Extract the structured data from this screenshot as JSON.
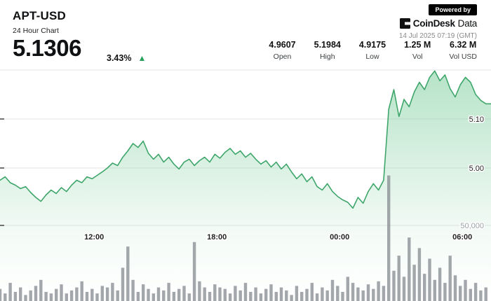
{
  "header": {
    "symbol": "APT-USD",
    "subtitle": "24 Hour Chart",
    "price": "5.1306",
    "change_pct": "3.43%",
    "change_direction": "up",
    "up_arrow": "▲"
  },
  "stats": [
    {
      "value": "4.9607",
      "label": "Open"
    },
    {
      "value": "5.1984",
      "label": "High"
    },
    {
      "value": "4.9175",
      "label": "Low"
    },
    {
      "value": "1.25 M",
      "label": "Vol"
    },
    {
      "value": "6.32 M",
      "label": "Vol USD"
    }
  ],
  "branding": {
    "powered_by": "Powered by",
    "logo_bold": "CoinDesk",
    "logo_light": "Data",
    "timestamp": "14 Jul 2025 07:19 (GMT)"
  },
  "colors": {
    "line_green": "#3fa66b",
    "fill_green": "#6ec891",
    "arrow_green": "#2aa15a",
    "volume_gray": "#8c9196",
    "grid": "#e5e5e5",
    "axis_text": "#222222",
    "axis_muted": "#9aa0a6"
  },
  "chart_data": {
    "type": "area",
    "title": "APT-USD 24 Hour Chart",
    "interval_hours": 0.25,
    "price_ylim": [
      4.88,
      5.24
    ],
    "volume_ylim": [
      0,
      83000
    ],
    "x_ticks": [
      {
        "label": "12:00",
        "hour": 4.6
      },
      {
        "label": "18:00",
        "hour": 10.6
      },
      {
        "label": "00:00",
        "hour": 16.6
      },
      {
        "label": "06:00",
        "hour": 22.6
      }
    ],
    "price_gridlines": [
      {
        "label": "",
        "value": 5.2
      },
      {
        "label": "5.10",
        "value": 5.1
      },
      {
        "label": "5.00",
        "value": 5.0
      }
    ],
    "volume_gridline": {
      "label": "50,000",
      "value": 50000
    },
    "prices": [
      4.975,
      4.982,
      4.97,
      4.965,
      4.958,
      4.962,
      4.95,
      4.94,
      4.932,
      4.945,
      4.955,
      4.948,
      4.96,
      4.952,
      4.965,
      4.975,
      4.97,
      4.982,
      4.978,
      4.985,
      4.992,
      5.0,
      5.01,
      5.005,
      5.022,
      5.035,
      5.05,
      5.042,
      5.055,
      5.03,
      5.018,
      5.028,
      5.012,
      5.022,
      5.008,
      4.998,
      5.012,
      5.018,
      5.005,
      5.015,
      5.022,
      5.012,
      5.028,
      5.02,
      5.032,
      5.04,
      5.028,
      5.035,
      5.022,
      5.03,
      5.018,
      5.008,
      5.015,
      5.002,
      5.012,
      4.998,
      5.008,
      4.992,
      4.978,
      4.988,
      4.972,
      4.982,
      4.962,
      4.955,
      4.968,
      4.952,
      4.942,
      4.935,
      4.93,
      4.918,
      4.94,
      4.928,
      4.952,
      4.968,
      4.955,
      4.975,
      5.12,
      5.16,
      5.105,
      5.14,
      5.125,
      5.155,
      5.175,
      5.16,
      5.185,
      5.198,
      5.178,
      5.19,
      5.162,
      5.145,
      5.17,
      5.185,
      5.175,
      5.15,
      5.138,
      5.131
    ],
    "volumes": [
      8000,
      5000,
      12000,
      6000,
      9000,
      4000,
      7000,
      10000,
      14000,
      6000,
      5000,
      8000,
      11000,
      5000,
      7000,
      9000,
      13000,
      6000,
      8000,
      5000,
      10000,
      9000,
      12000,
      7000,
      22000,
      36000,
      14000,
      6000,
      11000,
      8000,
      5000,
      9000,
      7000,
      12000,
      6000,
      8000,
      10000,
      5000,
      39000,
      13000,
      9000,
      6000,
      11000,
      9000,
      8000,
      5000,
      10000,
      7000,
      12000,
      6000,
      9000,
      5000,
      8000,
      11000,
      6000,
      9000,
      7000,
      4000,
      10000,
      6000,
      8000,
      12000,
      5000,
      9000,
      7000,
      14000,
      10000,
      6000,
      16000,
      12000,
      9000,
      7000,
      11000,
      8000,
      13000,
      10000,
      83000,
      20000,
      30000,
      16000,
      42000,
      24000,
      35000,
      18000,
      28000,
      14000,
      22000,
      12000,
      30000,
      17000,
      10000,
      14000,
      8000,
      12000,
      7000,
      9000
    ]
  }
}
